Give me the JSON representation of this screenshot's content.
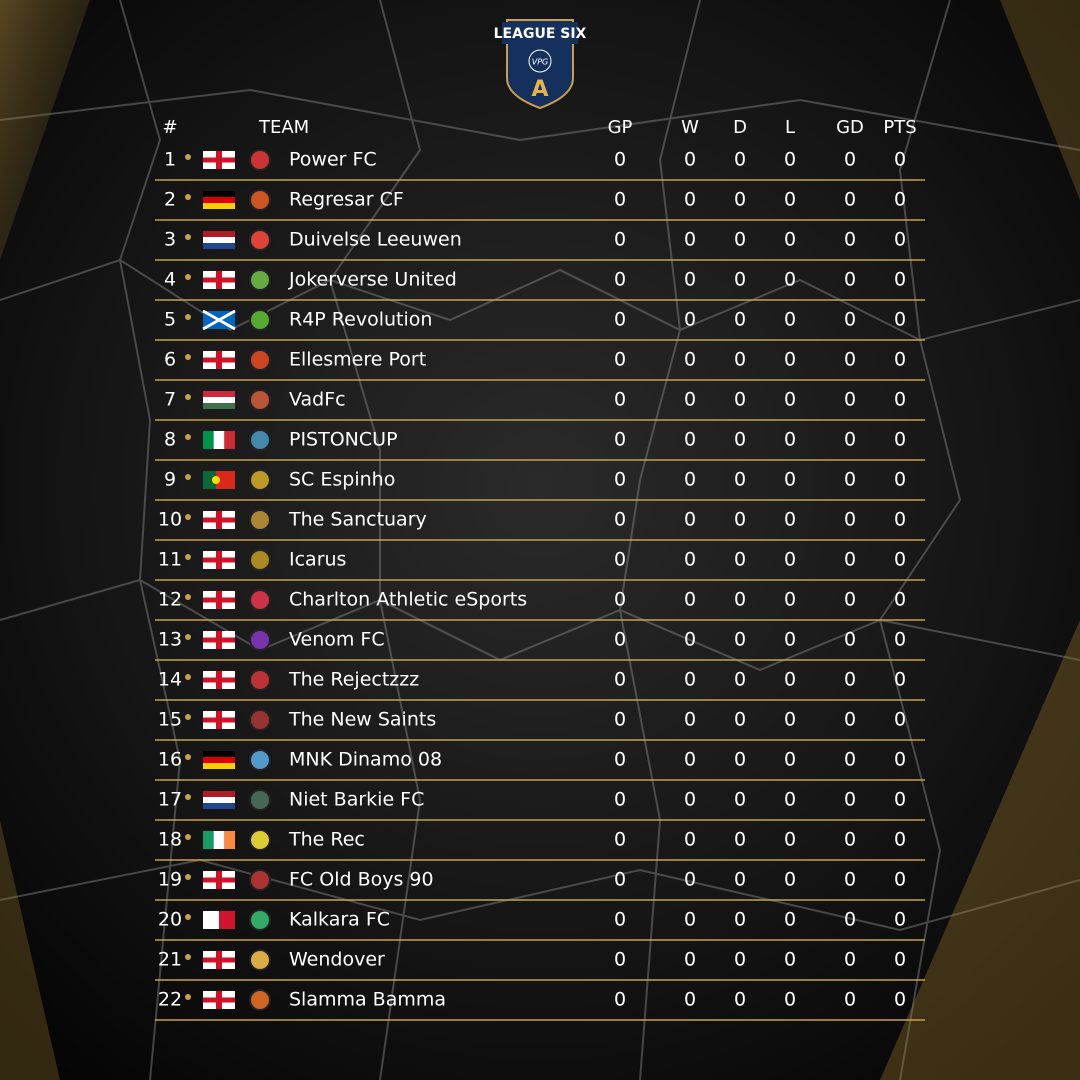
{
  "header": {
    "logo_top": "LEAGUE SIX",
    "logo_mid": "VPG",
    "logo_letter": "A"
  },
  "table": {
    "columns": [
      "#",
      "TEAM",
      "GP",
      "W",
      "D",
      "L",
      "GD",
      "PTS"
    ],
    "rows": [
      [
        1,
        "Power FC",
        0,
        0,
        0,
        0,
        0,
        0
      ],
      [
        2,
        "Regresar CF",
        0,
        0,
        0,
        0,
        0,
        0
      ],
      [
        3,
        "Duivelse Leeuwen",
        0,
        0,
        0,
        0,
        0,
        0
      ],
      [
        4,
        "Jokerverse United",
        0,
        0,
        0,
        0,
        0,
        0
      ],
      [
        5,
        "R4P Revolution",
        0,
        0,
        0,
        0,
        0,
        0
      ],
      [
        6,
        "Ellesmere Port",
        0,
        0,
        0,
        0,
        0,
        0
      ],
      [
        7,
        "VadFc",
        0,
        0,
        0,
        0,
        0,
        0
      ],
      [
        8,
        "PISTONCUP",
        0,
        0,
        0,
        0,
        0,
        0
      ],
      [
        9,
        "SC Espinho",
        0,
        0,
        0,
        0,
        0,
        0
      ],
      [
        10,
        "The Sanctuary",
        0,
        0,
        0,
        0,
        0,
        0
      ],
      [
        11,
        "Icarus",
        0,
        0,
        0,
        0,
        0,
        0
      ],
      [
        12,
        "Charlton Athletic eSports",
        0,
        0,
        0,
        0,
        0,
        0
      ],
      [
        13,
        "Venom FC",
        0,
        0,
        0,
        0,
        0,
        0
      ],
      [
        14,
        "The Rejectzzz",
        0,
        0,
        0,
        0,
        0,
        0
      ],
      [
        15,
        "The New Saints",
        0,
        0,
        0,
        0,
        0,
        0
      ],
      [
        16,
        "MNK Dinamo 08",
        0,
        0,
        0,
        0,
        0,
        0
      ],
      [
        17,
        "Niet Barkie FC",
        0,
        0,
        0,
        0,
        0,
        0
      ],
      [
        18,
        "The Rec",
        0,
        0,
        0,
        0,
        0,
        0
      ],
      [
        19,
        "FC Old Boys 90",
        0,
        0,
        0,
        0,
        0,
        0
      ],
      [
        20,
        "Kalkara FC",
        0,
        0,
        0,
        0,
        0,
        0
      ],
      [
        21,
        "Wendover",
        0,
        0,
        0,
        0,
        0,
        0
      ],
      [
        22,
        "Slamma Bamma",
        0,
        0,
        0,
        0,
        0,
        0
      ]
    ]
  }
}
